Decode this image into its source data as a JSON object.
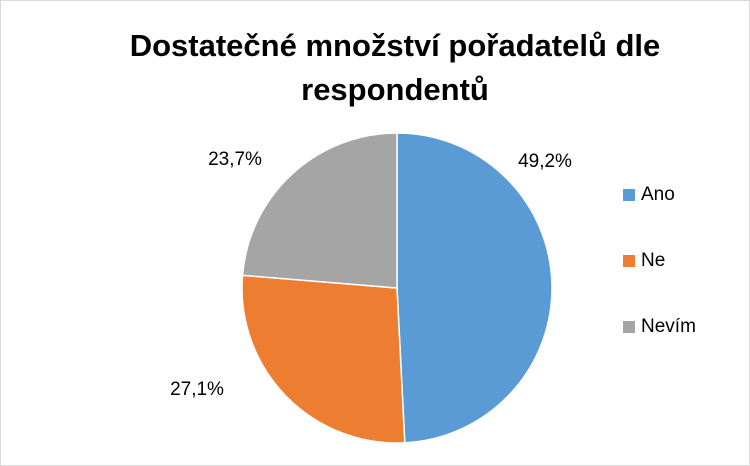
{
  "chart_data": {
    "type": "pie",
    "title": "Dostatečné množství pořadatelů dle respondentů",
    "categories": [
      "Ano",
      "Ne",
      "Nevím"
    ],
    "values": [
      49.2,
      27.1,
      23.7
    ],
    "value_labels": [
      "49,2%",
      "27,1%",
      "23,7%"
    ],
    "colors": [
      "#5b9bd5",
      "#ed7d31",
      "#a5a5a5"
    ],
    "legend": "right"
  }
}
